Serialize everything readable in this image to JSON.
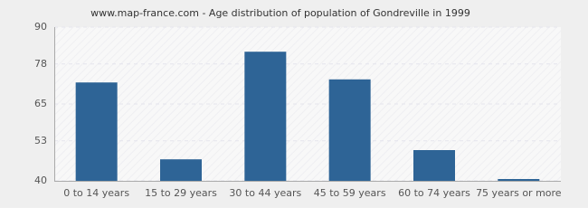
{
  "chart_data": {
    "type": "bar",
    "title": "www.map-france.com - Age distribution of population of Gondreville in 1999",
    "categories": [
      "0 to 14 years",
      "15 to 29 years",
      "30 to 44 years",
      "45 to 59 years",
      "60 to 74 years",
      "75 years or more"
    ],
    "values": [
      72,
      47,
      82,
      73,
      50,
      40
    ],
    "color": "#2e6496",
    "ylim": [
      40,
      90
    ],
    "yticks": [
      40,
      53,
      65,
      78,
      90
    ],
    "grid": true
  }
}
